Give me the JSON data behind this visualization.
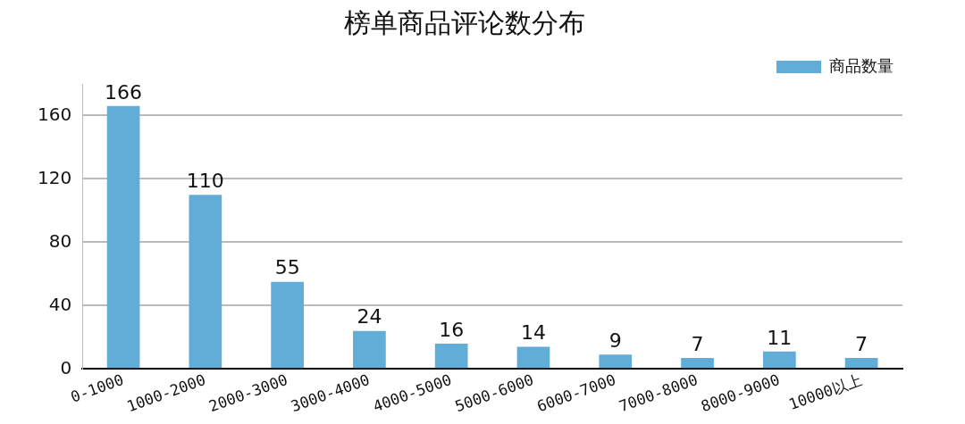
{
  "chart_data": {
    "type": "bar",
    "title": "榜单商品评论数分布",
    "categories": [
      "0-1000",
      "1000-2000",
      "2000-3000",
      "3000-4000",
      "4000-5000",
      "5000-6000",
      "6000-7000",
      "7000-8000",
      "8000-9000",
      "10000以上"
    ],
    "series": [
      {
        "name": "商品数量",
        "color": "#61add8",
        "values": [
          166,
          110,
          55,
          24,
          16,
          14,
          9,
          7,
          11,
          7
        ]
      }
    ],
    "ylim": [
      0,
      180
    ],
    "yticks": [
      0,
      40,
      80,
      120,
      160
    ],
    "grid": "y",
    "legend": "top right",
    "data_labels": true
  }
}
